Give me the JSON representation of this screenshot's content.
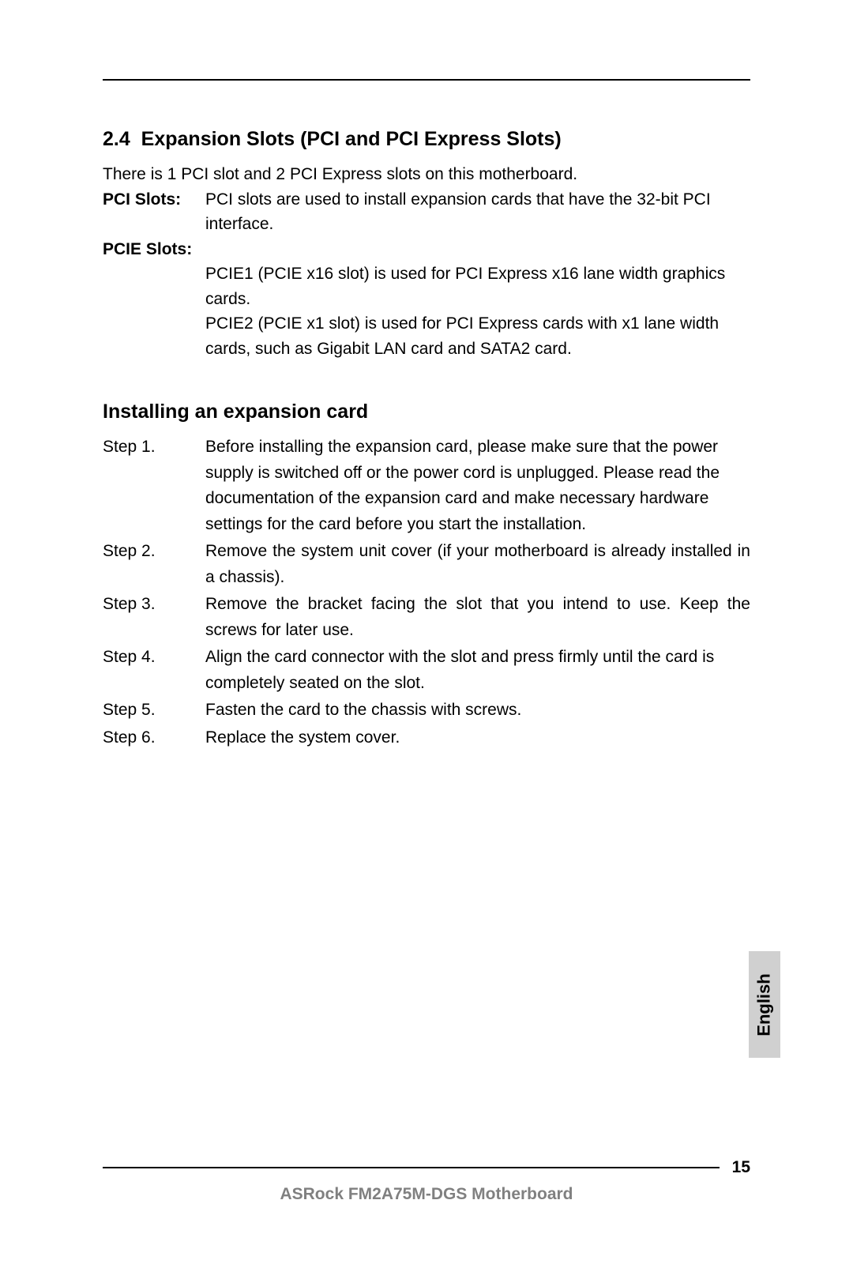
{
  "section": {
    "number": "2.4",
    "title": "Expansion Slots (PCI and PCI Express Slots)",
    "intro": "There is 1 PCI slot and 2 PCI Express slots on this motherboard."
  },
  "pci": {
    "label": "PCI Slots:",
    "text": "PCI slots are used to install expansion cards that have the 32-bit PCI interface."
  },
  "pcie": {
    "label": "PCIE Slots:",
    "line1": "PCIE1 (PCIE x16 slot) is used for PCI Express x16 lane width graphics cards.",
    "line2": "PCIE2 (PCIE x1 slot) is used for PCI Express cards with x1 lane width cards, such as Gigabit LAN card and SATA2 card."
  },
  "install": {
    "heading": "Installing an expansion card",
    "steps": [
      {
        "label": "Step 1.",
        "text": "Before installing the expansion card, please make sure that the power supply is switched off or the power cord is unplugged. Please read the documentation of the expansion card and make necessary hardware settings for the card before you start the installation."
      },
      {
        "label": "Step 2.",
        "text": "Remove the system unit cover (if your motherboard is already installed in a chassis)."
      },
      {
        "label": "Step 3.",
        "text": "Remove the bracket facing the slot that you intend to use. Keep the screws for later use."
      },
      {
        "label": "Step 4.",
        "text": "Align the card connector with the slot and press firmly until the card is completely seated on the slot."
      },
      {
        "label": "Step 5.",
        "text": "Fasten the card to the chassis with screws."
      },
      {
        "label": "Step 6.",
        "text": "Replace the system cover."
      }
    ]
  },
  "language_tab": "English",
  "footer": {
    "page_number": "15",
    "title": "ASRock  FM2A75M-DGS  Motherboard"
  }
}
